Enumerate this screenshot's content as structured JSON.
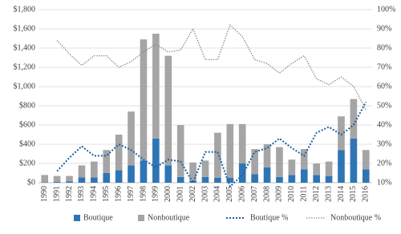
{
  "chart_data": {
    "type": "bar",
    "stacked": true,
    "grid": true,
    "categories": [
      "1990",
      "1991",
      "1992",
      "1993",
      "1994",
      "1995",
      "1996",
      "1997",
      "1998",
      "1999",
      "2000",
      "2001",
      "2002",
      "2003",
      "2004",
      "2005",
      "2006",
      "2007",
      "2008",
      "2009",
      "2010",
      "2011",
      "2012",
      "2013",
      "2014",
      "2015",
      "2016"
    ],
    "series": [
      {
        "name": "Boutique",
        "type": "bar",
        "color": "#2e75b6",
        "values": [
          5,
          10,
          15,
          55,
          55,
          100,
          130,
          180,
          230,
          460,
          180,
          60,
          20,
          60,
          50,
          50,
          200,
          90,
          160,
          60,
          80,
          140,
          80,
          70,
          340,
          460,
          140
        ]
      },
      {
        "name": "Nonboutique",
        "type": "bar",
        "color": "#a5a5a5",
        "values": [
          75,
          60,
          55,
          125,
          165,
          240,
          370,
          560,
          1260,
          1090,
          1140,
          540,
          190,
          170,
          470,
          560,
          410,
          260,
          240,
          310,
          160,
          210,
          120,
          150,
          350,
          410,
          200
        ]
      },
      {
        "name": "Boutique %",
        "type": "line",
        "axis": "y2",
        "color": "#1f5fa8",
        "values": [
          null,
          16,
          23,
          29,
          24,
          24,
          30,
          27,
          22,
          18,
          22,
          21,
          10,
          26,
          26,
          8,
          14,
          26,
          28,
          33,
          28,
          24,
          36,
          39,
          35,
          40,
          52
        ]
      },
      {
        "name": "Nonboutique %",
        "type": "line",
        "axis": "y2",
        "color": "#8c8c8c",
        "values": [
          null,
          84,
          77,
          71,
          76,
          76,
          70,
          73,
          78,
          82,
          78,
          79,
          90,
          74,
          74,
          92,
          86,
          74,
          72,
          67,
          72,
          76,
          64,
          61,
          65,
          60,
          48
        ]
      }
    ],
    "ylim": [
      0,
      1800
    ],
    "yticks": [
      {
        "value": 0,
        "label": "$0"
      },
      {
        "value": 200,
        "label": "$200"
      },
      {
        "value": 400,
        "label": "$400"
      },
      {
        "value": 600,
        "label": "$600"
      },
      {
        "value": 800,
        "label": "$800"
      },
      {
        "value": 1000,
        "label": "$1,000"
      },
      {
        "value": 1200,
        "label": "$1,200"
      },
      {
        "value": 1400,
        "label": "$1,400"
      },
      {
        "value": 1600,
        "label": "$1,600"
      },
      {
        "value": 1800,
        "label": "$1,800"
      }
    ],
    "y2lim": [
      10,
      100
    ],
    "y2ticks": [
      {
        "value": 10,
        "label": "10%"
      },
      {
        "value": 20,
        "label": "20%"
      },
      {
        "value": 30,
        "label": "30%"
      },
      {
        "value": 40,
        "label": "40%"
      },
      {
        "value": 50,
        "label": "50%"
      },
      {
        "value": 60,
        "label": "60%"
      },
      {
        "value": 70,
        "label": "70%"
      },
      {
        "value": 80,
        "label": "80%"
      },
      {
        "value": 90,
        "label": "90%"
      },
      {
        "value": 100,
        "label": "100%"
      }
    ],
    "legend": "bottom"
  }
}
